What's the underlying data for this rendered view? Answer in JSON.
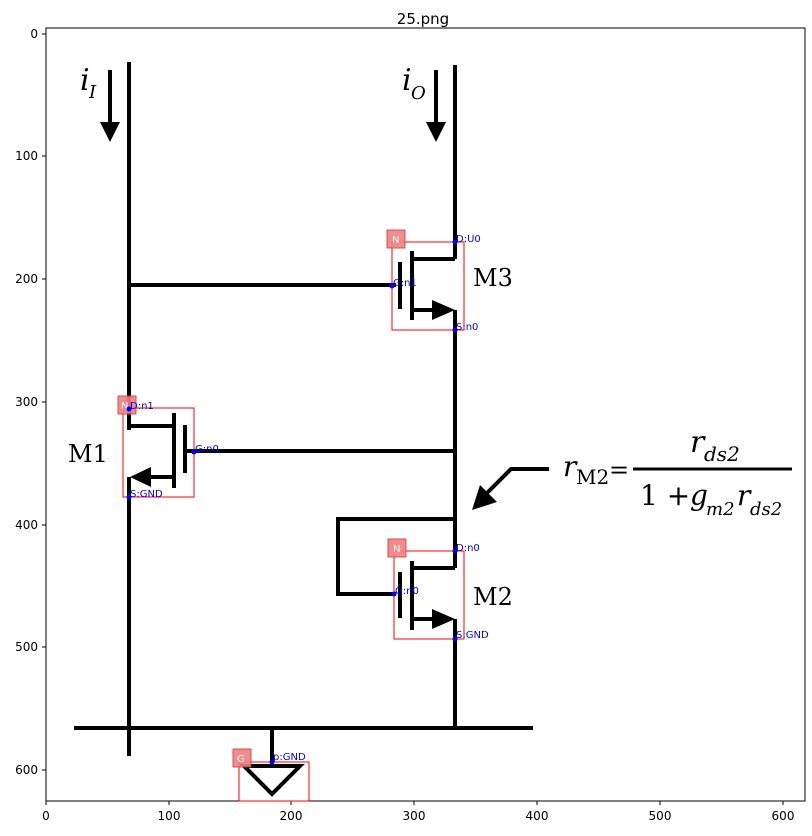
{
  "figure": {
    "title": "25.png",
    "x_ticks": [
      "0",
      "100",
      "200",
      "300",
      "400",
      "500",
      "600"
    ],
    "y_ticks": [
      "0",
      "100",
      "200",
      "300",
      "400",
      "500",
      "600"
    ]
  },
  "circuit": {
    "current_in_symbol": "i",
    "current_in_sub": "I",
    "current_out_symbol": "i",
    "current_out_sub": "O",
    "labels": {
      "m1": "M1",
      "m2": "M2",
      "m3": "M3"
    },
    "formula": {
      "lhs_r": "r",
      "lhs_sub": "M2",
      "equals": "=",
      "num_r": "r",
      "num_sub": "ds2",
      "den_one_plus": "1 + ",
      "den_g": "g",
      "den_g_sub": "m2",
      "den_r": "r",
      "den_r_sub": "ds2"
    }
  },
  "annotations": {
    "m3": {
      "tag": "N",
      "drain": "D:U0",
      "gate": "G:n1",
      "source": "S:n0"
    },
    "m1": {
      "tag": "N",
      "drain": "D:n1",
      "gate": "G:n0",
      "source": "S:GND"
    },
    "m2": {
      "tag": "N",
      "drain": "D:n0",
      "gate": "G:n0",
      "source": "S:GND"
    },
    "gnd": {
      "tag": "G",
      "port": "p:GND"
    }
  },
  "colors": {
    "box": "#ff0000",
    "tag_fill": "#f08080",
    "terminal": "#0000ff",
    "wire": "#000000"
  }
}
